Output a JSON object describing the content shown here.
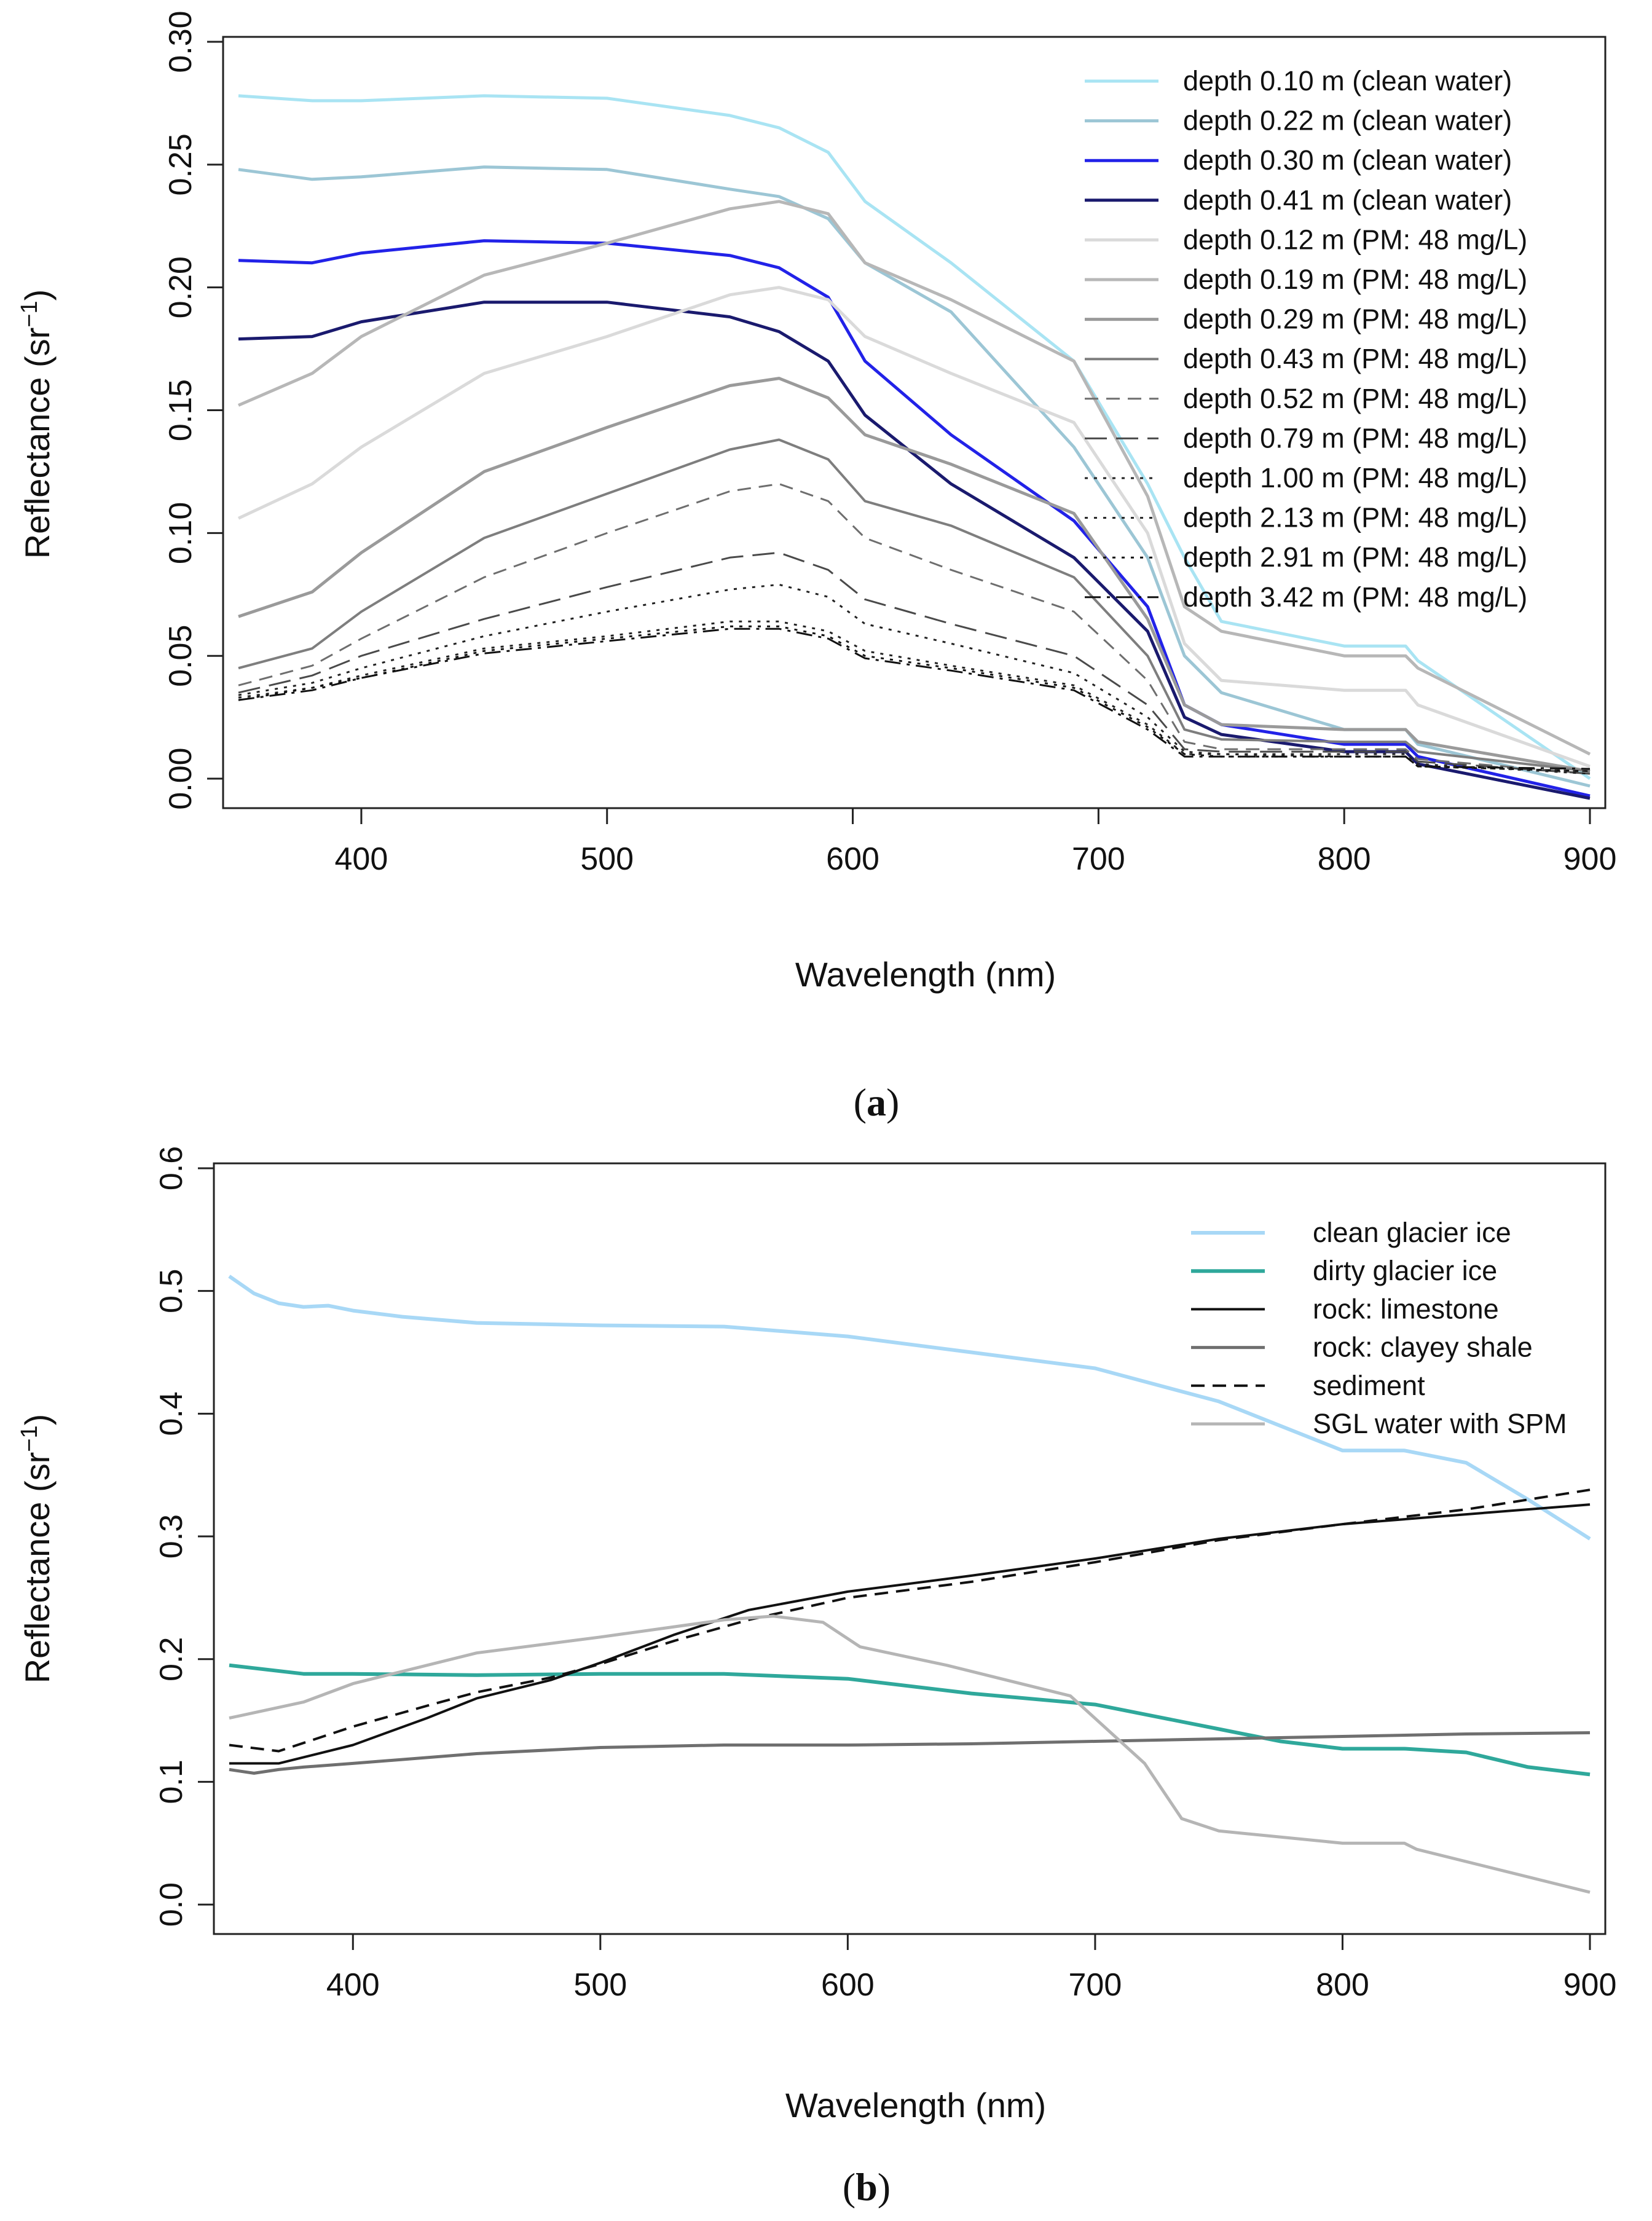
{
  "chart_data": [
    {
      "type": "line",
      "title": "",
      "xlabel": "Wavelength (nm)",
      "ylabel": "Reflectance (sr",
      "ylabel_sup": "−1",
      "ylabel_close": ")",
      "xlim": [
        350,
        900
      ],
      "ylim": [
        -0.012,
        0.302
      ],
      "xticks": [
        400,
        500,
        600,
        700,
        800,
        900
      ],
      "yticks": [
        0.0,
        0.05,
        0.1,
        0.15,
        0.2,
        0.25,
        0.3
      ],
      "ytick_labels": [
        "0.00",
        "0.05",
        "0.10",
        "0.15",
        "0.20",
        "0.25",
        "0.30"
      ],
      "legend_position": "top-right",
      "caption_letter": "a",
      "x": [
        350,
        380,
        400,
        450,
        500,
        550,
        570,
        590,
        605,
        640,
        690,
        720,
        735,
        750,
        800,
        825,
        830,
        900
      ],
      "series": [
        {
          "name": "depth 0.10 m (clean water)",
          "color": "#a9e4f3",
          "dash": "solid",
          "width": 5,
          "values": [
            0.278,
            0.276,
            0.276,
            0.278,
            0.277,
            0.27,
            0.265,
            0.255,
            0.235,
            0.21,
            0.17,
            0.12,
            0.09,
            0.064,
            0.054,
            0.054,
            0.048,
            0.0
          ]
        },
        {
          "name": "depth 0.22 m (clean water)",
          "color": "#9cc6d5",
          "dash": "solid",
          "width": 5,
          "values": [
            0.248,
            0.244,
            0.245,
            0.249,
            0.248,
            0.24,
            0.237,
            0.228,
            0.21,
            0.19,
            0.135,
            0.09,
            0.05,
            0.035,
            0.02,
            0.02,
            0.014,
            -0.003
          ]
        },
        {
          "name": "depth 0.30 m (clean water)",
          "color": "#2222e8",
          "dash": "solid",
          "width": 5,
          "values": [
            0.211,
            0.21,
            0.214,
            0.219,
            0.218,
            0.213,
            0.208,
            0.196,
            0.17,
            0.14,
            0.105,
            0.07,
            0.03,
            0.022,
            0.014,
            0.014,
            0.009,
            -0.007
          ]
        },
        {
          "name": "depth 0.41 m (clean water)",
          "color": "#1a1a6e",
          "dash": "solid",
          "width": 5,
          "values": [
            0.179,
            0.18,
            0.186,
            0.194,
            0.194,
            0.188,
            0.182,
            0.17,
            0.148,
            0.12,
            0.09,
            0.06,
            0.025,
            0.018,
            0.011,
            0.011,
            0.006,
            -0.008
          ]
        },
        {
          "name": "depth 0.12 m (PM: 48 mg/L)",
          "color": "#dadada",
          "dash": "solid",
          "width": 5,
          "values": [
            0.106,
            0.12,
            0.135,
            0.165,
            0.18,
            0.197,
            0.2,
            0.195,
            0.18,
            0.165,
            0.145,
            0.1,
            0.055,
            0.04,
            0.036,
            0.036,
            0.03,
            0.005
          ]
        },
        {
          "name": "depth 0.19 m (PM: 48 mg/L)",
          "color": "#b7b7b7",
          "dash": "solid",
          "width": 5,
          "values": [
            0.152,
            0.165,
            0.18,
            0.205,
            0.218,
            0.232,
            0.235,
            0.23,
            0.21,
            0.195,
            0.17,
            0.115,
            0.07,
            0.06,
            0.05,
            0.05,
            0.045,
            0.01
          ]
        },
        {
          "name": "depth 0.29 m (PM: 48 mg/L)",
          "color": "#9a9a9a",
          "dash": "solid",
          "width": 5,
          "values": [
            0.066,
            0.076,
            0.092,
            0.125,
            0.143,
            0.16,
            0.163,
            0.155,
            0.14,
            0.128,
            0.108,
            0.065,
            0.03,
            0.022,
            0.02,
            0.02,
            0.015,
            0.003
          ]
        },
        {
          "name": "depth 0.43 m (PM: 48 mg/L)",
          "color": "#7e7e7e",
          "dash": "solid",
          "width": 4,
          "values": [
            0.045,
            0.053,
            0.068,
            0.098,
            0.116,
            0.134,
            0.138,
            0.13,
            0.113,
            0.103,
            0.082,
            0.05,
            0.02,
            0.016,
            0.015,
            0.015,
            0.011,
            0.003
          ]
        },
        {
          "name": "depth 0.52 m (PM: 48 mg/L)",
          "color": "#6e6e6e",
          "dash": "dashed",
          "width": 3,
          "values": [
            0.038,
            0.046,
            0.057,
            0.082,
            0.1,
            0.117,
            0.12,
            0.113,
            0.098,
            0.085,
            0.068,
            0.04,
            0.015,
            0.012,
            0.012,
            0.012,
            0.008,
            0.002
          ]
        },
        {
          "name": "depth 0.79 m (PM: 48 mg/L)",
          "color": "#4a4a4a",
          "dash": "longdash",
          "width": 3,
          "values": [
            0.035,
            0.042,
            0.05,
            0.065,
            0.078,
            0.09,
            0.092,
            0.085,
            0.073,
            0.063,
            0.05,
            0.03,
            0.012,
            0.011,
            0.011,
            0.011,
            0.007,
            0.002
          ]
        },
        {
          "name": "depth 1.00 m (PM: 48 mg/L)",
          "color": "#222222",
          "dash": "dotted",
          "width": 3,
          "values": [
            0.034,
            0.039,
            0.045,
            0.058,
            0.068,
            0.077,
            0.079,
            0.074,
            0.063,
            0.055,
            0.043,
            0.025,
            0.011,
            0.01,
            0.01,
            0.01,
            0.006,
            0.002
          ]
        },
        {
          "name": "depth 2.13 m (PM: 48 mg/L)",
          "color": "#222222",
          "dash": "dotted",
          "width": 3,
          "values": [
            0.033,
            0.037,
            0.042,
            0.053,
            0.058,
            0.064,
            0.064,
            0.06,
            0.052,
            0.046,
            0.038,
            0.022,
            0.01,
            0.01,
            0.009,
            0.009,
            0.005,
            0.003
          ]
        },
        {
          "name": "depth 2.91 m (PM: 48 mg/L)",
          "color": "#111111",
          "dash": "dotted",
          "width": 3,
          "values": [
            0.032,
            0.037,
            0.041,
            0.052,
            0.057,
            0.062,
            0.062,
            0.058,
            0.05,
            0.045,
            0.037,
            0.021,
            0.01,
            0.009,
            0.009,
            0.009,
            0.005,
            0.003
          ]
        },
        {
          "name": "depth 3.42 m (PM: 48 mg/L)",
          "color": "#111111",
          "dash": "dashdot",
          "width": 3,
          "values": [
            0.032,
            0.036,
            0.041,
            0.051,
            0.056,
            0.061,
            0.061,
            0.057,
            0.049,
            0.044,
            0.036,
            0.02,
            0.009,
            0.009,
            0.009,
            0.009,
            0.005,
            0.004
          ]
        }
      ]
    },
    {
      "type": "line",
      "title": "",
      "xlabel": "Wavelength (nm)",
      "ylabel": "Reflectance (sr",
      "ylabel_sup": "−1",
      "ylabel_close": ")",
      "xlim": [
        350,
        900
      ],
      "ylim": [
        -0.024,
        0.604
      ],
      "xticks": [
        400,
        500,
        600,
        700,
        800,
        900
      ],
      "yticks": [
        0.0,
        0.1,
        0.2,
        0.3,
        0.4,
        0.5,
        0.6
      ],
      "ytick_labels": [
        "0.0",
        "0.1",
        "0.2",
        "0.3",
        "0.4",
        "0.5",
        "0.6"
      ],
      "legend_position": "top-right",
      "caption_letter": "b",
      "series": [
        {
          "name": "clean glacier ice",
          "color": "#a8d8f6",
          "dash": "solid",
          "width": 6,
          "x": [
            350,
            360,
            370,
            380,
            390,
            400,
            420,
            450,
            500,
            550,
            600,
            650,
            700,
            750,
            775,
            800,
            825,
            850,
            875,
            900
          ],
          "values": [
            0.512,
            0.498,
            0.49,
            0.487,
            0.488,
            0.484,
            0.479,
            0.474,
            0.472,
            0.471,
            0.463,
            0.45,
            0.437,
            0.41,
            0.39,
            0.37,
            0.37,
            0.36,
            0.33,
            0.298
          ]
        },
        {
          "name": "dirty glacier ice",
          "color": "#2fa89b",
          "dash": "solid",
          "width": 6,
          "x": [
            350,
            380,
            400,
            450,
            500,
            550,
            600,
            650,
            700,
            750,
            775,
            800,
            825,
            850,
            875,
            900
          ],
          "values": [
            0.195,
            0.188,
            0.188,
            0.187,
            0.188,
            0.188,
            0.184,
            0.172,
            0.163,
            0.143,
            0.133,
            0.127,
            0.127,
            0.124,
            0.112,
            0.106
          ]
        },
        {
          "name": "rock: limestone",
          "color": "#111111",
          "dash": "solid",
          "width": 4,
          "x": [
            350,
            370,
            400,
            430,
            450,
            480,
            500,
            530,
            560,
            600,
            650,
            700,
            750,
            800,
            850,
            900
          ],
          "values": [
            0.115,
            0.115,
            0.13,
            0.152,
            0.168,
            0.183,
            0.197,
            0.22,
            0.24,
            0.255,
            0.268,
            0.282,
            0.298,
            0.31,
            0.318,
            0.326
          ]
        },
        {
          "name": "rock: clayey shale",
          "color": "#6f6f6f",
          "dash": "solid",
          "width": 5,
          "x": [
            350,
            360,
            370,
            380,
            400,
            450,
            500,
            550,
            600,
            650,
            700,
            750,
            800,
            850,
            900
          ],
          "values": [
            0.11,
            0.107,
            0.11,
            0.112,
            0.115,
            0.123,
            0.128,
            0.13,
            0.13,
            0.131,
            0.133,
            0.135,
            0.137,
            0.139,
            0.14
          ]
        },
        {
          "name": "sediment",
          "color": "#111111",
          "dash": "dashed",
          "width": 4,
          "x": [
            350,
            370,
            400,
            430,
            450,
            480,
            500,
            530,
            560,
            600,
            650,
            700,
            750,
            800,
            850,
            900
          ],
          "values": [
            0.13,
            0.125,
            0.145,
            0.162,
            0.173,
            0.185,
            0.196,
            0.215,
            0.232,
            0.25,
            0.263,
            0.279,
            0.297,
            0.31,
            0.322,
            0.338
          ]
        },
        {
          "name": "SGL water with SPM",
          "color": "#b5b5b5",
          "dash": "solid",
          "width": 5,
          "x": [
            350,
            380,
            400,
            450,
            500,
            550,
            570,
            590,
            605,
            640,
            690,
            720,
            735,
            750,
            800,
            825,
            830,
            900
          ],
          "values": [
            0.152,
            0.165,
            0.18,
            0.205,
            0.218,
            0.232,
            0.235,
            0.23,
            0.21,
            0.195,
            0.17,
            0.115,
            0.07,
            0.06,
            0.05,
            0.05,
            0.045,
            0.01
          ]
        }
      ]
    }
  ]
}
